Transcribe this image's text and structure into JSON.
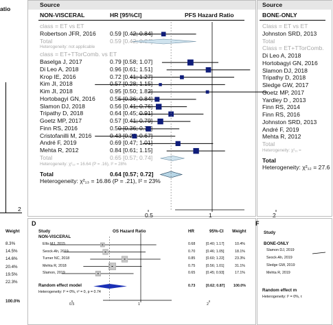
{
  "left_strip": {
    "top_fragment": "atio",
    "axis_2": "2",
    "weight_header": "Weight",
    "weights": [
      "8.3%",
      "14.5%",
      "14.6%",
      "20.4%",
      "19.5%",
      "22.3%"
    ],
    "total_weight": "100.0%"
  },
  "panel_c": {
    "source_label": "Source",
    "col_study": "NON-VISCERAL",
    "col_hr": "HR [95%CI]",
    "col_plot": "PFS Hazard Ratio",
    "class1": "class = ET vs ET",
    "class1_rows": [
      {
        "study": "Robertson JFR, 2016",
        "hr": "0.59 [0.42; 0.84]",
        "est": 0.59,
        "lo": 0.42,
        "hi": 0.84,
        "w": 3
      }
    ],
    "class1_total": {
      "label": "Total",
      "hr": "0.59 [0.42; 0.84]"
    },
    "class1_het": "Heterogeneity: not applicable",
    "class2": "class = ET+TTorComb. vs ET",
    "class2_rows": [
      {
        "study": "Baselga J, 2017",
        "hr": "0.79 [0.58; 1.07]",
        "est": 0.79,
        "lo": 0.58,
        "hi": 1.07,
        "w": 4
      },
      {
        "study": "Di Leo A, 2018",
        "hr": "0.96 [0.61; 1.51]",
        "est": 0.96,
        "lo": 0.61,
        "hi": 1.51,
        "w": 3.5
      },
      {
        "study": "Krop IE, 2016",
        "hr": "0.72 [0.41; 1.27]",
        "est": 0.72,
        "lo": 0.41,
        "hi": 1.27,
        "w": 2.6
      },
      {
        "study": "Kim JI, 2018",
        "hr": "0.57 [0.28; 1.15]",
        "est": 0.57,
        "lo": 0.28,
        "hi": 1.15,
        "w": 2
      },
      {
        "study": "Kim JI, 2018",
        "hr": "0.95 [0.50; 1.82]",
        "est": 0.95,
        "lo": 0.5,
        "hi": 1.82,
        "w": 2.2
      },
      {
        "study": "Hortobagyi GN, 2016",
        "hr": "0.55 [0.36; 0.84]",
        "est": 0.55,
        "lo": 0.36,
        "hi": 0.84,
        "w": 3.2
      },
      {
        "study": "Slamon DJ, 2018",
        "hr": "0.56 [0.41; 0.76]",
        "est": 0.56,
        "lo": 0.41,
        "hi": 0.76,
        "w": 3.8
      },
      {
        "study": "Tripathy D, 2018",
        "hr": "0.64 [0.45; 0.91]",
        "est": 0.64,
        "lo": 0.45,
        "hi": 0.91,
        "w": 3.5
      },
      {
        "study": "Goetz MP, 2017",
        "hr": "0.57 [0.41; 0.79]",
        "est": 0.57,
        "lo": 0.41,
        "hi": 0.79,
        "w": 3.8
      },
      {
        "study": "Finn RS, 2016",
        "hr": "0.50 [0.36; 0.70]",
        "est": 0.5,
        "lo": 0.36,
        "hi": 0.7,
        "w": 3.5
      },
      {
        "study": "Cristofanilli M, 2016",
        "hr": "0.43 [0.28; 0.67]",
        "est": 0.43,
        "lo": 0.28,
        "hi": 0.67,
        "w": 3
      },
      {
        "study": "André F, 2019",
        "hr": "0.69 [0.47; 1.01]",
        "est": 0.69,
        "lo": 0.47,
        "hi": 1.01,
        "w": 3.3
      },
      {
        "study": "Mehta R, 2012",
        "hr": "0.84 [0.61; 1.15]",
        "est": 0.84,
        "lo": 0.61,
        "hi": 1.15,
        "w": 3.8
      }
    ],
    "class2_total": {
      "label": "Total",
      "hr": "0.65 [0.57; 0.74]"
    },
    "class2_het": "Heterogeneity: χ²₁₂ = 16.64 (P = .16), I² = 28%",
    "overall": {
      "label": "Total",
      "hr": "0.64 [0.57; 0.72]",
      "est": 0.64,
      "lo": 0.57,
      "hi": 0.72
    },
    "overall_het": "Heterogeneity: χ²₁₃ = 16.86 (P = .21), I² = 23%",
    "axis_ticks": [
      "0.5",
      "1",
      "2"
    ]
  },
  "panel_right_top": {
    "source_label": "Source",
    "col_study": "BONE-ONLY",
    "class1": "Class = ET vs ET",
    "class1_rows": [
      "Johnston SRD, 2013"
    ],
    "class1_total": "Total",
    "class2": "Class = ET+TTorComb.",
    "class2_rows": [
      "Di Leo A, 2018",
      "Hortobagyi GN, 2016",
      "Slamon DJ, 2018",
      "Tripathy D, 2018",
      "Sledge GW, 2017",
      "Goetz MP, 2017",
      "Yardley D , 2013",
      "Finn RS, 2014",
      "Finn RS, 2016",
      "Johnston SRD, 2013",
      "André F, 2019",
      "Mehta R, 2012"
    ],
    "class2_total": "Total",
    "class2_het": "Heterogeneity: χ²₁₁ = ",
    "overall": "Total",
    "overall_het": "Heterogeneity: χ²₁₂ = 27.6"
  },
  "panel_d": {
    "letter": "D",
    "col_study": "Study",
    "col_plot": "OS Hazard Ratio",
    "col_hr": "HR",
    "col_ci": "95%-CI",
    "col_weight": "Weight",
    "subgroup": "NON-VISCERAL",
    "rows": [
      {
        "study": "Ellis MJ, 2015",
        "hr": "0.68",
        "ci": "[0.40; 1.17]",
        "weight": "10.4%",
        "est": 0.68,
        "lo": 0.4,
        "hi": 1.17
      },
      {
        "study": "Seock-Ah, 2019",
        "hr": "0.70",
        "ci": "[0.46; 1.05]",
        "weight": "18.1%",
        "est": 0.7,
        "lo": 0.46,
        "hi": 1.05
      },
      {
        "study": "Turner NC, 2018",
        "hr": "0.85",
        "ci": "[0.60; 1.22]",
        "weight": "23.3%",
        "est": 0.85,
        "lo": 0.6,
        "hi": 1.22
      },
      {
        "study": "Mehta R, 2018",
        "hr": "0.75",
        "ci": "[0.56; 1.01]",
        "weight": "31.1%",
        "est": 0.75,
        "lo": 0.56,
        "hi": 1.01
      },
      {
        "study": "Slamon, 2019",
        "hr": "0.65",
        "ci": "[0.45; 0.93]",
        "weight": "17.1%",
        "est": 0.65,
        "lo": 0.45,
        "hi": 0.93
      }
    ],
    "random_label": "Random effect model",
    "random": {
      "hr": "0.73",
      "ci": "[0.62; 0.87]",
      "weight": "100.0%",
      "est": 0.73,
      "lo": 0.62,
      "hi": 0.87
    },
    "het": "Heterogeneity: I² = 0%, τ² = 0, p = 0.74",
    "axis_ticks": [
      "0.5",
      "1",
      "2"
    ]
  },
  "panel_f": {
    "letter": "F",
    "col_study": "Study",
    "subgroup": "BONE-ONLY",
    "rows": [
      "Slamon DJ, 2019",
      "Seock-Ah, 2019",
      "Sledge GW, 2019",
      "Mehta R, 2019"
    ],
    "random_label": "Random effect m",
    "het": "Heterogeneity: I² = 0%, τ"
  }
}
